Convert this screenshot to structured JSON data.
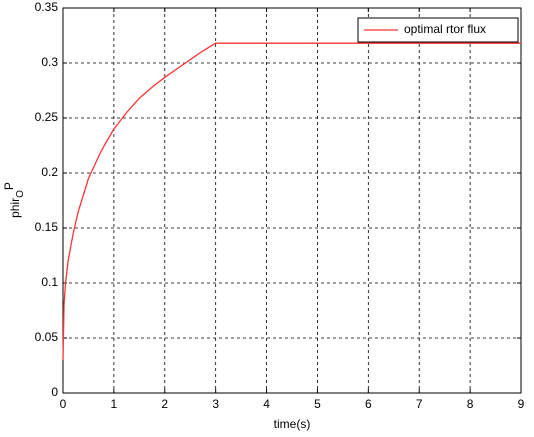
{
  "chart_data": {
    "type": "line",
    "xlabel": "time(s)",
    "ylabel": {
      "base": "phir",
      "sub": "O",
      "sup": "P"
    },
    "x": [
      0,
      0.02,
      0.05,
      0.1,
      0.2,
      0.3,
      0.5,
      0.75,
      1,
      1.25,
      1.5,
      1.75,
      2,
      2.25,
      2.5,
      2.75,
      3,
      9
    ],
    "series": [
      {
        "name": "optimal rtor flux",
        "color": "#ff3333",
        "values": [
          0.03,
          0.08,
          0.1,
          0.12,
          0.145,
          0.165,
          0.195,
          0.22,
          0.24,
          0.255,
          0.268,
          0.278,
          0.287,
          0.295,
          0.303,
          0.311,
          0.318,
          0.318
        ]
      }
    ],
    "xlim": [
      0,
      9
    ],
    "xticks": [
      0,
      1,
      2,
      3,
      4,
      5,
      6,
      7,
      8,
      9
    ],
    "ylim": [
      0,
      0.35
    ],
    "yticks": [
      0,
      0.05,
      0.1,
      0.15,
      0.2,
      0.25,
      0.3,
      0.35
    ],
    "grid": true,
    "legend": "top-right"
  }
}
